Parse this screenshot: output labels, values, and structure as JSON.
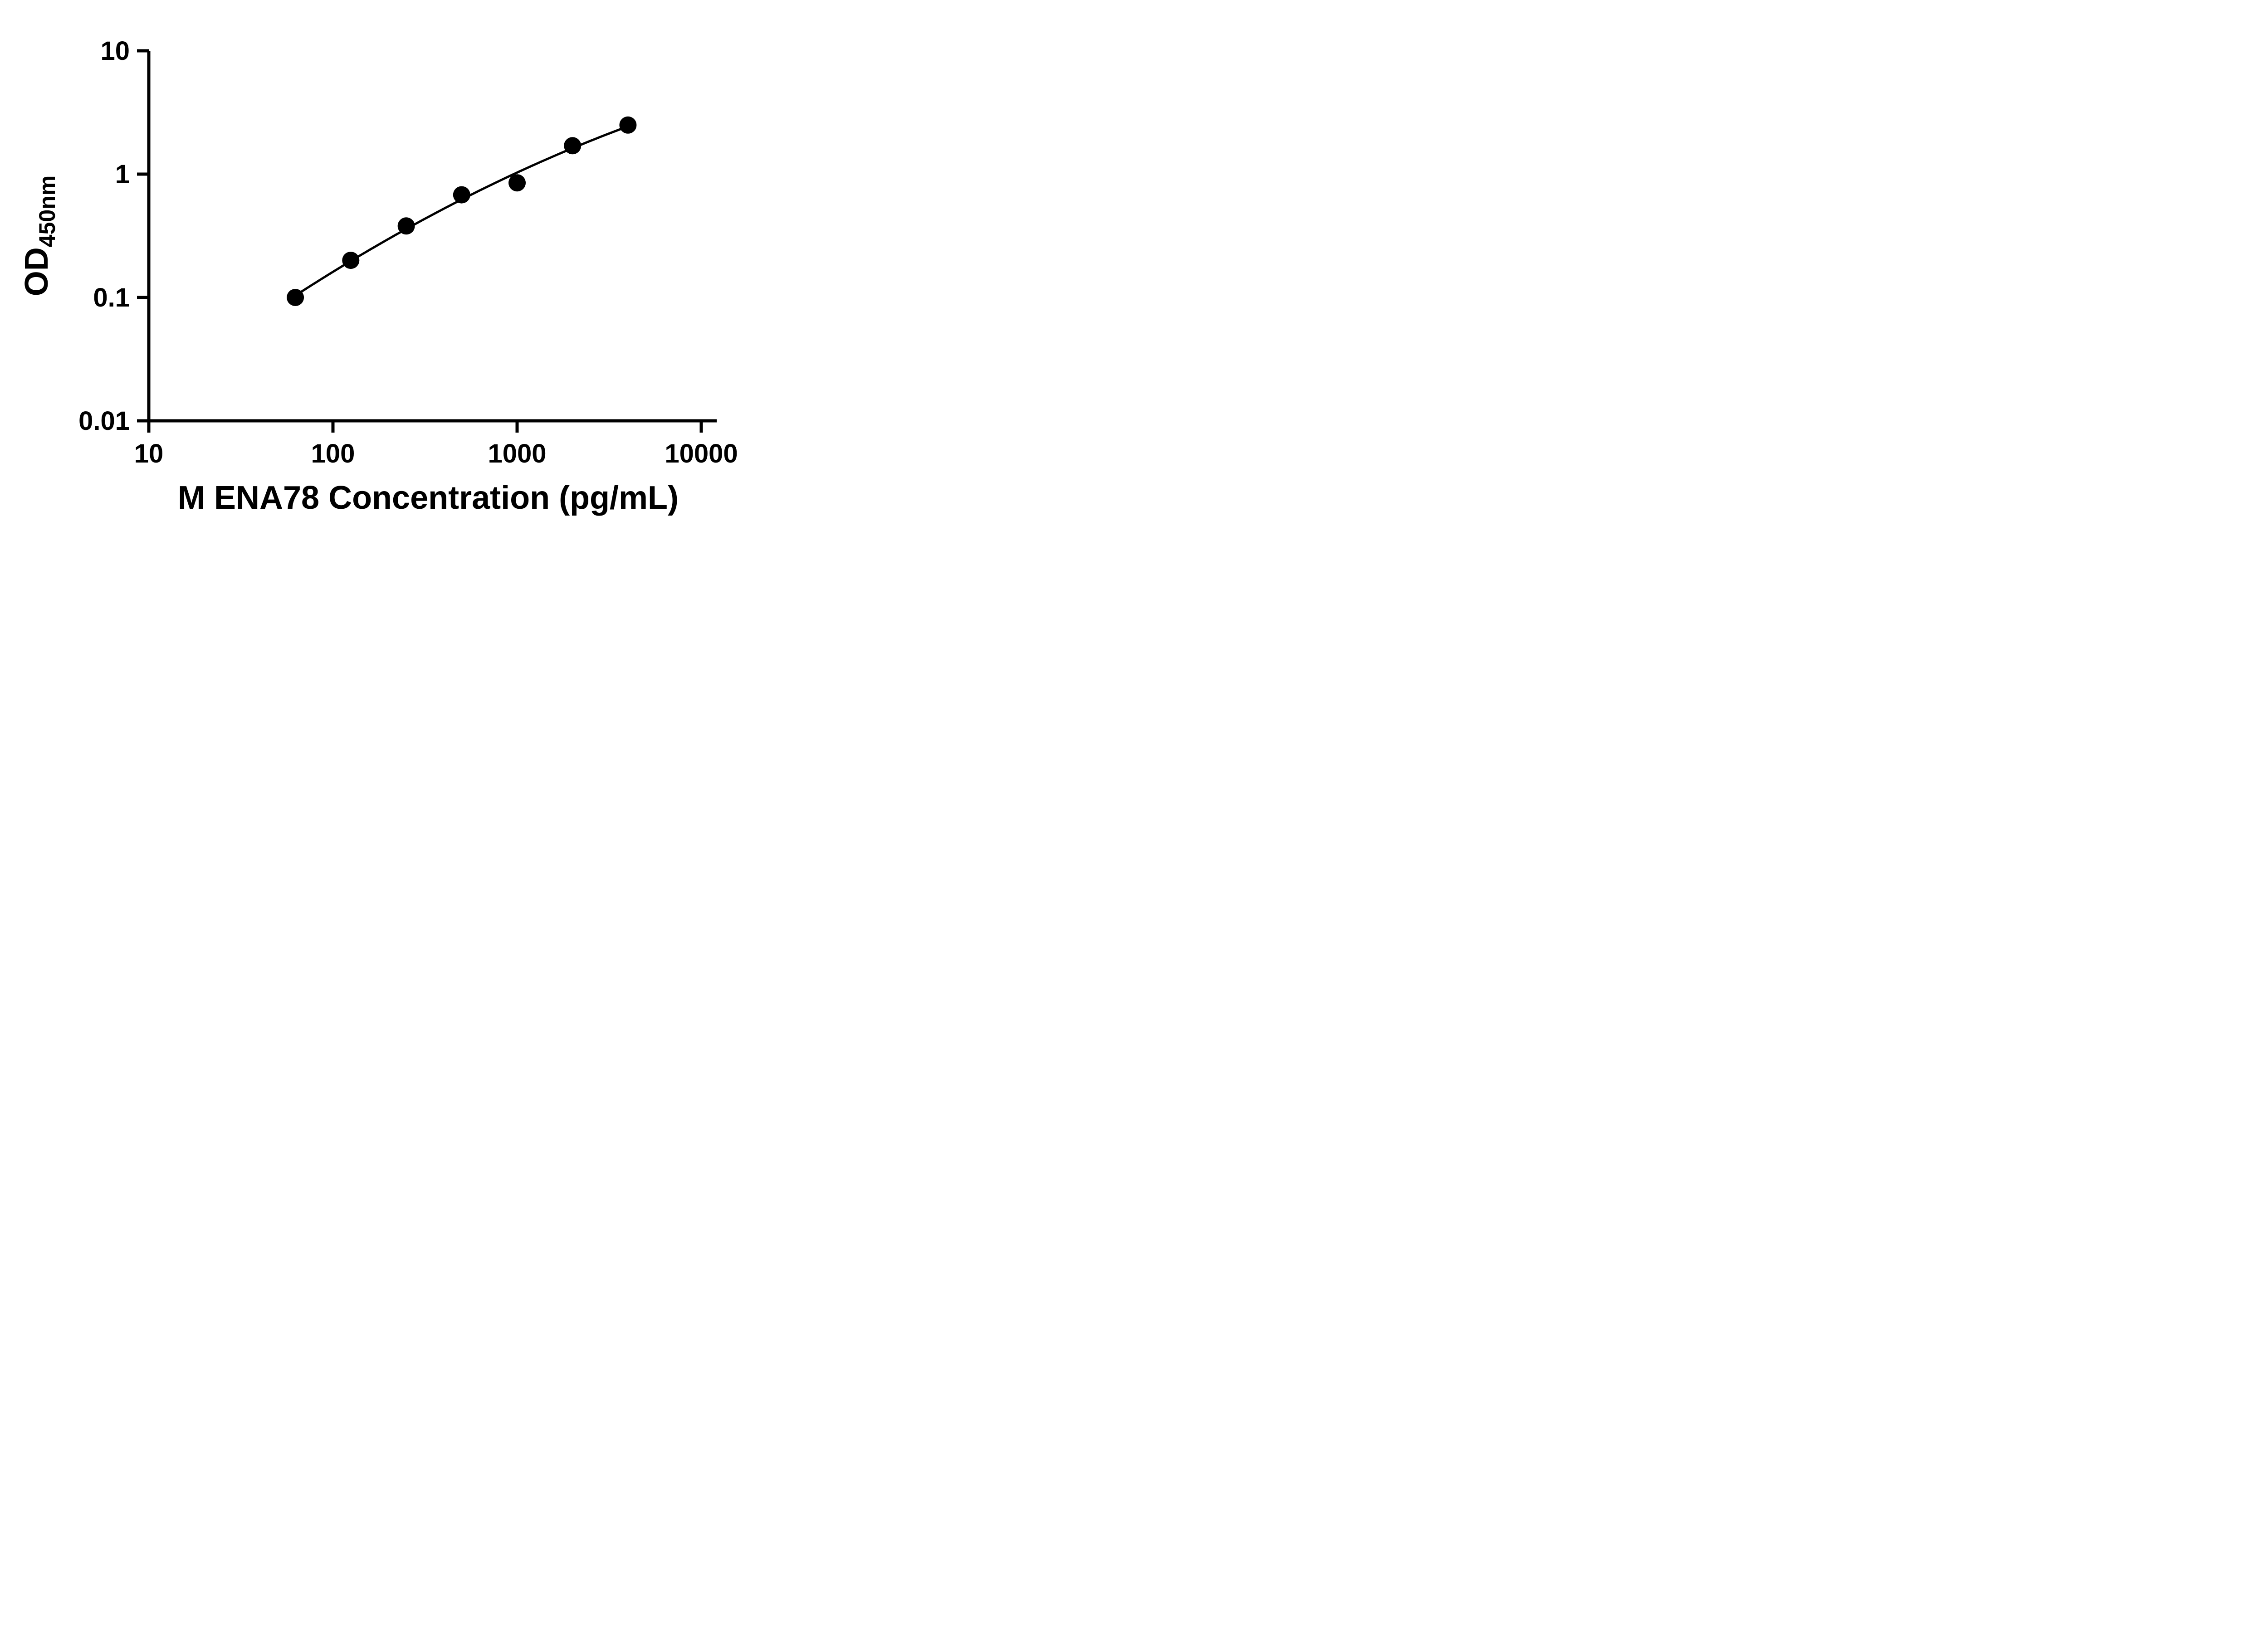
{
  "chart_data": {
    "type": "scatter",
    "title": "",
    "xlabel": "M ENA78 Concentration (pg/mL)",
    "ylabel_main": "OD",
    "ylabel_sub": "450nm",
    "x_scale": "log10",
    "y_scale": "log10",
    "xlim": [
      10,
      10000
    ],
    "ylim": [
      0.01,
      10
    ],
    "grid": false,
    "legend": "none",
    "x_ticks": [
      {
        "value": 10,
        "label": "10"
      },
      {
        "value": 100,
        "label": "100"
      },
      {
        "value": 1000,
        "label": "1000"
      },
      {
        "value": 10000,
        "label": "10000"
      }
    ],
    "y_ticks": [
      {
        "value": 10,
        "label": "10"
      },
      {
        "value": 1,
        "label": "1"
      },
      {
        "value": 0.1,
        "label": "0.1"
      },
      {
        "value": 0.01,
        "label": "0.01"
      }
    ],
    "points": {
      "x": [
        62.5,
        125,
        250,
        500,
        1000,
        2000,
        4000
      ],
      "y": [
        0.1,
        0.2,
        0.38,
        0.68,
        0.85,
        1.7,
        2.5
      ]
    },
    "fit": {
      "type": "smooth log-log curve through standards"
    },
    "marker_color": "#000000",
    "line_color": "#000000",
    "axis_color": "#000000",
    "text_color": "#000000",
    "background": "#ffffff"
  }
}
